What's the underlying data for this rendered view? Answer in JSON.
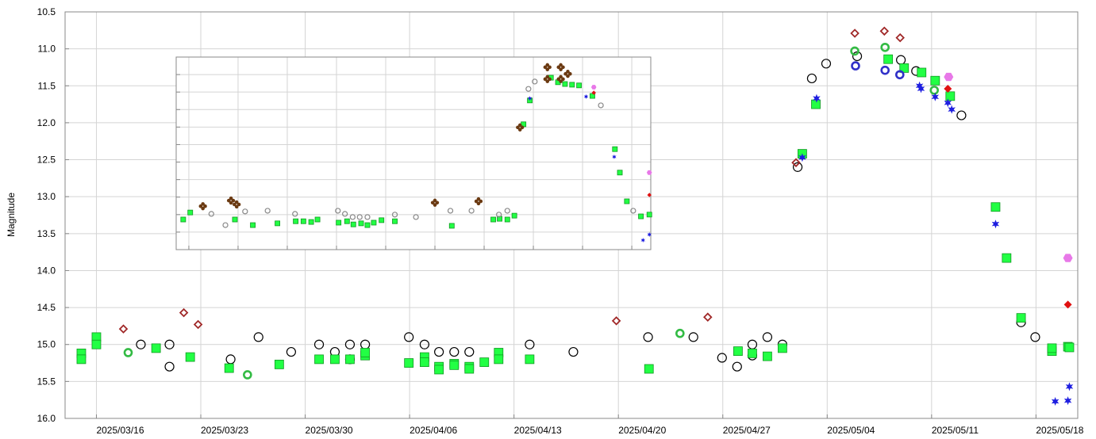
{
  "chart_data": [
    {
      "type": "scatter",
      "y_label": "Magnitude",
      "y_inverted": true,
      "grid": true,
      "xlim": [
        2460748.4,
        2460816.3
      ],
      "ylim": [
        10.5,
        16.0
      ],
      "xticks": [
        {
          "value": 2460750.5,
          "label": "2025/03/16"
        },
        {
          "value": 2460757.5,
          "label": "2025/03/23"
        },
        {
          "value": 2460764.5,
          "label": "2025/03/30"
        },
        {
          "value": 2460771.5,
          "label": "2025/04/06"
        },
        {
          "value": 2460778.5,
          "label": "2025/04/13"
        },
        {
          "value": 2460785.5,
          "label": "2025/04/20"
        },
        {
          "value": 2460792.5,
          "label": "2025/04/27"
        },
        {
          "value": 2460799.5,
          "label": "2025/05/04"
        },
        {
          "value": 2460806.5,
          "label": "2025/05/11"
        },
        {
          "value": 2460813.5,
          "label": "2025/05/18"
        }
      ],
      "yticks": [
        10.5,
        {
          "value": 11,
          "label": "11.0"
        },
        11.5,
        {
          "value": 12,
          "label": "12.0"
        },
        12.5,
        {
          "value": 13,
          "label": "13.0"
        },
        13.5,
        {
          "value": 14,
          "label": "14.0"
        },
        14.5,
        {
          "value": 15,
          "label": "15.0"
        },
        15.5,
        {
          "value": 16,
          "label": "16.0"
        }
      ],
      "series": [
        {
          "marker": "circle-open",
          "color": "#000000",
          "x": [
            2460753.48,
            2460755.4,
            2460755.4,
            2460759.5,
            2460761.37,
            2460763.56,
            2460765.43,
            2460766.49,
            2460767.5,
            2460767.5,
            2460768.52,
            2460771.45,
            2460772.5,
            2460773.47,
            2460774.49,
            2460775.5,
            2460779.55,
            2460782.48,
            2460787.49,
            2460790.53,
            2460792.45,
            2460793.46,
            2460794.48,
            2460794.48,
            2460795.49,
            2460796.5,
            2460797.52,
            2460798.47,
            2460799.43,
            2460801.51,
            2460804.44,
            2460805.46,
            2460808.5,
            2460812.5,
            2460813.45
          ],
          "values": [
            15.0,
            15.3,
            15.0,
            15.2,
            14.9,
            15.1,
            15.0,
            15.1,
            15.0,
            15.2,
            15.0,
            14.9,
            15.0,
            15.1,
            15.1,
            15.1,
            15.0,
            15.1,
            14.9,
            14.9,
            15.18,
            15.3,
            15.0,
            15.15,
            14.9,
            15.0,
            12.6,
            11.4,
            11.2,
            11.1,
            11.15,
            11.3,
            11.9,
            14.7,
            14.9
          ]
        },
        {
          "marker": "square",
          "color": "#22ff44",
          "x": [
            2460749.49,
            2460749.49,
            2460750.5,
            2460750.5,
            2460754.5,
            2460756.79,
            2460759.4,
            2460762.76,
            2460765.43,
            2460766.49,
            2460767.5,
            2460768.52,
            2460768.52,
            2460771.45,
            2460772.5,
            2460772.5,
            2460773.47,
            2460773.47,
            2460774.49,
            2460774.49,
            2460775.5,
            2460775.5,
            2460776.51,
            2460777.47,
            2460777.47,
            2460779.55,
            2460787.55,
            2460793.52,
            2460794.48,
            2460795.49,
            2460796.5,
            2460797.83,
            2460798.74,
            2460803.59,
            2460804.66,
            2460805.83,
            2460806.74,
            2460807.75,
            2460810.79,
            2460811.53,
            2460812.5,
            2460814.57,
            2460814.57,
            2460815.64,
            2460815.74
          ],
          "values": [
            15.12,
            15.2,
            14.9,
            15.0,
            15.05,
            15.17,
            15.32,
            15.27,
            15.2,
            15.2,
            15.2,
            15.15,
            15.11,
            15.25,
            15.17,
            15.24,
            15.3,
            15.34,
            15.26,
            15.28,
            15.3,
            15.33,
            15.24,
            15.11,
            15.2,
            15.2,
            15.33,
            15.09,
            15.12,
            15.16,
            15.05,
            12.42,
            11.75,
            11.14,
            11.26,
            11.32,
            11.43,
            11.64,
            13.14,
            13.83,
            14.64,
            15.09,
            15.05,
            15.03,
            15.04
          ]
        },
        {
          "marker": "circle-open-thick",
          "color": "#33bb44",
          "x": [
            2460752.63,
            2460760.63,
            2460789.63,
            2460801.35,
            2460803.38,
            2460806.68
          ],
          "values": [
            15.11,
            15.41,
            14.85,
            11.03,
            10.98,
            11.56
          ]
        },
        {
          "marker": "diamond-open",
          "color": "#a02828",
          "x": [
            2460752.31,
            2460756.36,
            2460757.32,
            2460785.36,
            2460791.49,
            2460797.41,
            2460801.35,
            2460803.33,
            2460804.39
          ],
          "values": [
            14.79,
            14.57,
            14.73,
            14.68,
            14.63,
            12.54,
            10.79,
            10.76,
            10.85
          ]
        },
        {
          "marker": "circle-open-thick",
          "color": "#3030c8",
          "x": [
            2460801.4,
            2460803.38,
            2460804.37
          ],
          "values": [
            11.23,
            11.29,
            11.35
          ]
        },
        {
          "marker": "star",
          "color": "#1e1ee0",
          "x": [
            2460797.83,
            2460798.79,
            2460805.69,
            2460805.79,
            2460806.74,
            2460807.59,
            2460807.85,
            2460810.79,
            2460814.79,
            2460815.64,
            2460815.74
          ],
          "values": [
            12.47,
            11.67,
            11.5,
            11.54,
            11.65,
            11.73,
            11.82,
            13.37,
            15.77,
            15.76,
            15.57
          ]
        },
        {
          "marker": "diamond",
          "color": "#e01010",
          "x": [
            2460807.59,
            2460815.64
          ],
          "values": [
            11.54,
            14.46
          ]
        },
        {
          "marker": "hexagon",
          "color": "#e878e8",
          "x": [
            2460807.64,
            2460815.64
          ],
          "values": [
            11.38,
            13.83
          ]
        }
      ]
    },
    {
      "type": "scatter",
      "y_inverted": true,
      "grid": true,
      "xlim": [
        -8.8,
        58.7
      ],
      "ylim": [
        10.5,
        16.0
      ],
      "xticks": [
        -7,
        0,
        7,
        14,
        21,
        28,
        35,
        42,
        49,
        56
      ],
      "yticks": [
        11,
        11.5,
        12,
        12.5,
        13,
        13.5,
        14,
        14.5,
        15,
        15.5
      ],
      "series": [
        {
          "marker": "square",
          "color": "#22ff44",
          "x": [
            -7.8,
            -6.8,
            -0.45,
            2.1,
            5.6,
            8.2,
            9.3,
            10.4,
            11.3,
            14.3,
            15.5,
            16.4,
            17.5,
            18.4,
            19.3,
            20.4,
            22.3,
            30.4,
            36.3,
            37.2,
            38.3,
            39.3,
            40.6,
            41.5,
            44.5,
            45.5,
            46.5,
            47.5,
            48.5,
            50.4,
            53.6,
            54.3,
            55.3,
            57.3,
            58.5
          ],
          "values": [
            15.14,
            14.94,
            15.14,
            15.3,
            15.25,
            15.19,
            15.19,
            15.21,
            15.14,
            15.23,
            15.19,
            15.28,
            15.25,
            15.3,
            15.23,
            15.16,
            15.19,
            15.32,
            15.14,
            15.12,
            15.14,
            15.03,
            12.42,
            11.74,
            11.09,
            11.22,
            11.27,
            11.29,
            11.31,
            11.61,
            13.13,
            13.8,
            14.62,
            15.05,
            15.0
          ]
        },
        {
          "marker": "circle-open",
          "color": "#888888",
          "x": [
            -3.8,
            -1.8,
            1.0,
            4.2,
            8.1,
            14.2,
            15.2,
            16.3,
            17.3,
            18.4,
            22.3,
            25.3,
            30.2,
            33.2,
            37.1,
            38.3,
            41.3,
            42.2,
            51.6,
            56.2
          ],
          "values": [
            14.98,
            15.3,
            14.91,
            14.89,
            14.98,
            14.89,
            14.98,
            15.07,
            15.07,
            15.07,
            15.0,
            15.07,
            14.89,
            14.89,
            15.0,
            14.89,
            11.41,
            11.2,
            11.88,
            14.89
          ]
        },
        {
          "marker": "cluster",
          "color": "#6b3a12",
          "x": [
            -5.0,
            -1.0,
            -0.2,
            28.0,
            34.2,
            40.1,
            44.0,
            44.0,
            45.9,
            45.9,
            46.9
          ],
          "values": [
            14.76,
            14.6,
            14.71,
            14.66,
            14.62,
            12.51,
            10.79,
            11.13,
            10.79,
            11.13,
            10.98
          ]
        },
        {
          "marker": "star",
          "color": "#1e1ee0",
          "x": [
            41.5,
            49.5,
            53.5,
            57.6,
            58.5
          ],
          "values": [
            11.68,
            11.63,
            13.35,
            15.73,
            15.57
          ]
        },
        {
          "marker": "diamond",
          "color": "#e01010",
          "x": [
            50.6,
            58.5
          ],
          "values": [
            11.52,
            14.44
          ]
        },
        {
          "marker": "hexagon",
          "color": "#e878e8",
          "x": [
            50.6,
            58.5
          ],
          "values": [
            11.36,
            13.8
          ]
        }
      ]
    }
  ]
}
